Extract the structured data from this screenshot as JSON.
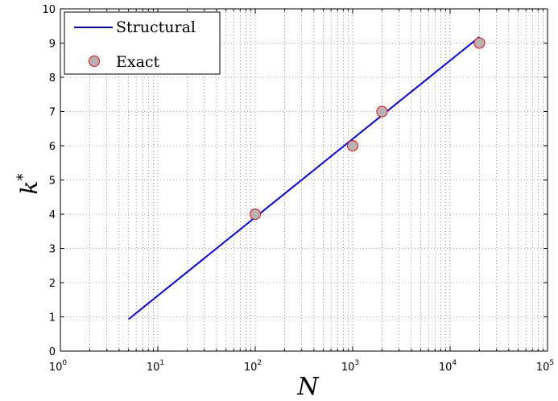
{
  "chart_data": {
    "type": "line",
    "xscale": "log",
    "xlim": [
      1,
      100000
    ],
    "ylim": [
      0,
      10
    ],
    "grid": true,
    "x_ticks": [
      {
        "base": "10",
        "exp": "0"
      },
      {
        "base": "10",
        "exp": "1"
      },
      {
        "base": "10",
        "exp": "2"
      },
      {
        "base": "10",
        "exp": "3"
      },
      {
        "base": "10",
        "exp": "4"
      },
      {
        "base": "10",
        "exp": "5"
      }
    ],
    "y_ticks": [
      "0",
      "1",
      "2",
      "3",
      "4",
      "5",
      "6",
      "7",
      "8",
      "9",
      "10"
    ],
    "xlabel": "N",
    "ylabel": {
      "base": "k",
      "sup": "*"
    },
    "legend_position": "top-left",
    "series": [
      {
        "name": "Structural",
        "style": "line",
        "color": "#0000ff",
        "x": [
          5,
          20000
        ],
        "y": [
          0.93,
          9.18
        ]
      },
      {
        "name": "Exact",
        "style": "marker",
        "color": "#b4b4b4",
        "edge_color": "#ff0000",
        "x": [
          100,
          1000,
          2000,
          20000
        ],
        "y": [
          4,
          6,
          7,
          9
        ]
      }
    ]
  }
}
